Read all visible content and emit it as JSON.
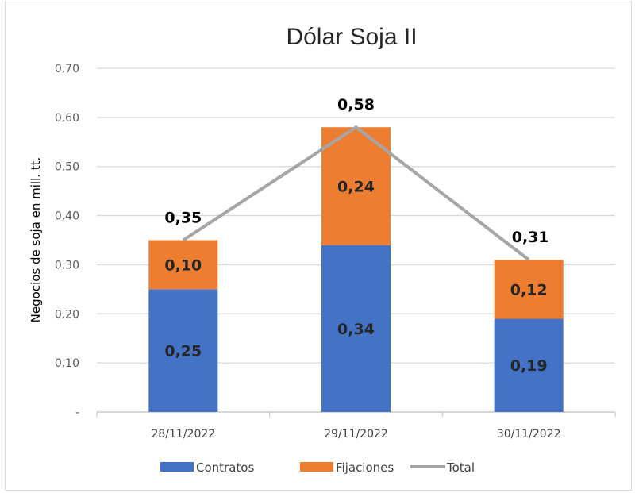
{
  "chart_data": {
    "type": "bar",
    "stacked": true,
    "title": "Dólar Soja II",
    "xlabel": "",
    "ylabel": "Negocios de soja en mill. tt.",
    "ylim": [
      0,
      0.7
    ],
    "yticks": [
      "-",
      "0,10",
      "0,20",
      "0,30",
      "0,40",
      "0,50",
      "0,60",
      "0,70"
    ],
    "grid": true,
    "legend_position": "bottom",
    "categories": [
      "28/11/2022",
      "29/11/2022",
      "30/11/2022"
    ],
    "series": [
      {
        "name": "Contratos",
        "type": "bar",
        "color": "#4472C4",
        "values": [
          0.25,
          0.34,
          0.19
        ],
        "labels": [
          "0,25",
          "0,34",
          "0,19"
        ]
      },
      {
        "name": "Fijaciones",
        "type": "bar",
        "color": "#ED7D31",
        "values": [
          0.1,
          0.24,
          0.12
        ],
        "labels": [
          "0,10",
          "0,24",
          "0,12"
        ]
      },
      {
        "name": "Total",
        "type": "line",
        "color": "#A5A5A5",
        "values": [
          0.35,
          0.58,
          0.31
        ],
        "labels": [
          "0,35",
          "0,58",
          "0,31"
        ]
      }
    ]
  }
}
